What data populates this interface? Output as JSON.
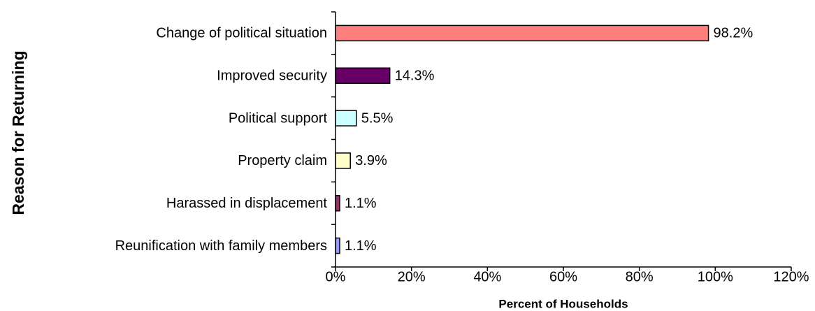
{
  "chart_data": {
    "type": "bar",
    "orientation": "horizontal",
    "xlabel": "Percent of Households",
    "ylabel": "Reason for Returning",
    "categories": [
      "Change of political situation",
      "Improved security",
      "Political support",
      "Property claim",
      "Harassed in displacement",
      "Reunification with family members"
    ],
    "values": [
      98.2,
      14.3,
      5.5,
      3.9,
      1.1,
      1.1
    ],
    "value_labels": [
      "98.2%",
      "14.3%",
      "5.5%",
      "3.9%",
      "1.1%",
      "1.1%"
    ],
    "colors": [
      "#ff8080",
      "#660066",
      "#ccffff",
      "#ffffcc",
      "#993366",
      "#9999ff"
    ],
    "xlim": [
      0,
      120
    ],
    "xticks": [
      {
        "value": 0,
        "label": "0%"
      },
      {
        "value": 20,
        "label": "20%"
      },
      {
        "value": 40,
        "label": "40%"
      },
      {
        "value": 60,
        "label": "60%"
      },
      {
        "value": 80,
        "label": "80%"
      },
      {
        "value": 100,
        "label": "100%"
      },
      {
        "value": 120,
        "label": "120%"
      }
    ]
  }
}
